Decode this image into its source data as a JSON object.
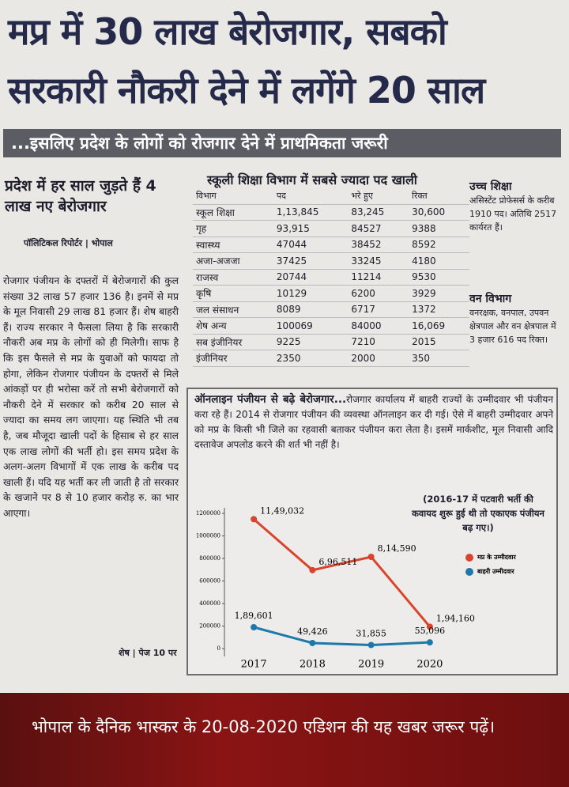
{
  "headline": [
    "मप्र में 30 लाख बेरोजगार, सबको",
    "सरकारी नौकरी देने में लगेंगे 20 साल"
  ],
  "banner": "...इसलिए प्रदेश के लोगों को रोजगार देने में प्राथमिकता जरूरी",
  "left": {
    "subhead": "प्रदेश में हर साल जुड़ते हैं 4 लाख नए बेरोजगार",
    "byline": "पॉलिटिकल रिपोर्टर | भोपाल",
    "body": "रोजगार पंजीयन के दफ्तरों में बेरोजगारों की कुल संख्या 32 लाख 57 हजार 136 है। इनमें से मप्र के मूल निवासी 29 लाख 81 हजार हैं। शेष बाहरी हैं। राज्य सरकार ने फैसला लिया है कि सरकारी नौकरी अब मप्र के लोगों को ही मिलेगी। साफ है कि इस फैसले से मप्र के युवाओं को फायदा तो होगा, लेकिन रोजगार पंजीयन के दफ्तरों से मिले आंकड़ों पर ही भरोसा करें तो सभी बेरोजगारों को नौकरी देने में सरकार को करीब 20 साल से ज्यादा का समय लग जाएगा। यह स्थिति भी तब है, जब मौजूदा खाली पदों के हिसाब से हर साल एक लाख लोगों की भर्ती हो। इस समय प्रदेश के अलग-अलग विभागों में एक लाख के करीब पद खाली हैं। यदि यह भर्ती कर ली जाती है तो सरकार के खजाने पर 8 से 10 हजार करोड़ रु. का भार आएगा।",
    "continued": "शेष | पेज 10 पर"
  },
  "table": {
    "title": "स्कूली शिक्षा विभाग में सबसे ज्यादा पद खाली",
    "headers": [
      "विभाग",
      "पद",
      "भरे हुए",
      "रिक्त"
    ],
    "rows": [
      [
        "स्कूल शिक्षा",
        "1,13,845",
        "83,245",
        "30,600"
      ],
      [
        "गृह",
        "93,915",
        "84527",
        "9388"
      ],
      [
        "स्वास्थ्य",
        "47044",
        "38452",
        "8592"
      ],
      [
        "अजा-अजजा",
        "37425",
        "33245",
        "4180"
      ],
      [
        "राजस्व",
        "20744",
        "11214",
        "9530"
      ],
      [
        "कृषि",
        "10129",
        "6200",
        "3929"
      ],
      [
        "जल संसाधन",
        "8089",
        "6717",
        "1372"
      ],
      [
        "शेष अन्य",
        "100069",
        "84000",
        "16,069"
      ],
      [
        "सब इंजीनियर",
        "9225",
        "7210",
        "2015"
      ],
      [
        "इंजीनियर",
        "2350",
        "2000",
        "350"
      ]
    ]
  },
  "side_notes": [
    {
      "title": "उच्च शिक्षा",
      "text": "असिस्टेंट प्रोफेसर्स के करीब 1910 पद। अतिथि 2517 कार्यरत हैं।"
    },
    {
      "title": "वन विभाग",
      "text": "वनरक्षक, वनपाल, उपवन क्षेत्रपाल और वन क्षेत्रपाल में 3 हजार 616 पद रिक्त।"
    }
  ],
  "box": {
    "title": "ऑनलाइन पंजीयन से बढ़े बेरोजगार...",
    "text": "रोजगार कार्यालय में बाहरी राज्यों के उम्मीदवार भी पंजीयन करा रहे हैं। 2014 से रोजगार पंजीयन की व्यवस्था ऑनलाइन कर दी गई। ऐसे में बाहरी उम्मीदवार अपने को मप्र के किसी भी जिले का रहवासी बताकर पंजीयन करा लेता है। इसमें मार्कशीट, मूल निवासी आदि दस्तावेज अपलोड करने की शर्त भी नहीं है।"
  },
  "chart_data": {
    "type": "line",
    "categories": [
      "2017",
      "2018",
      "2019",
      "2020"
    ],
    "series": [
      {
        "name": "मप्र के उम्मीदवार",
        "color": "#d8452c",
        "values": [
          1149032,
          696511,
          814590,
          194160
        ],
        "value_labels": [
          "11,49,032",
          "6,96,511",
          "8,14,590",
          "1,94,160"
        ]
      },
      {
        "name": "बाहरी उम्मीदवार",
        "color": "#1d79aa",
        "values": [
          189601,
          49426,
          31855,
          55096
        ],
        "value_labels": [
          "1,89,601",
          "49,426",
          "31,855",
          "55,096"
        ]
      }
    ],
    "ylim": [
      0,
      1250000
    ],
    "yticks": [
      0,
      200000,
      400000,
      600000,
      800000,
      1000000,
      1200000
    ],
    "annotation": "(2016-17 में पटवारी भर्ती की कवायद शुरू हुई थी तो एकाएक पंजीयन बढ़ गए।)"
  },
  "caption": "भोपाल के दैनिक भास्कर के 20-08-2020 एडिशन की यह खबर जरूर पढ़ें।"
}
